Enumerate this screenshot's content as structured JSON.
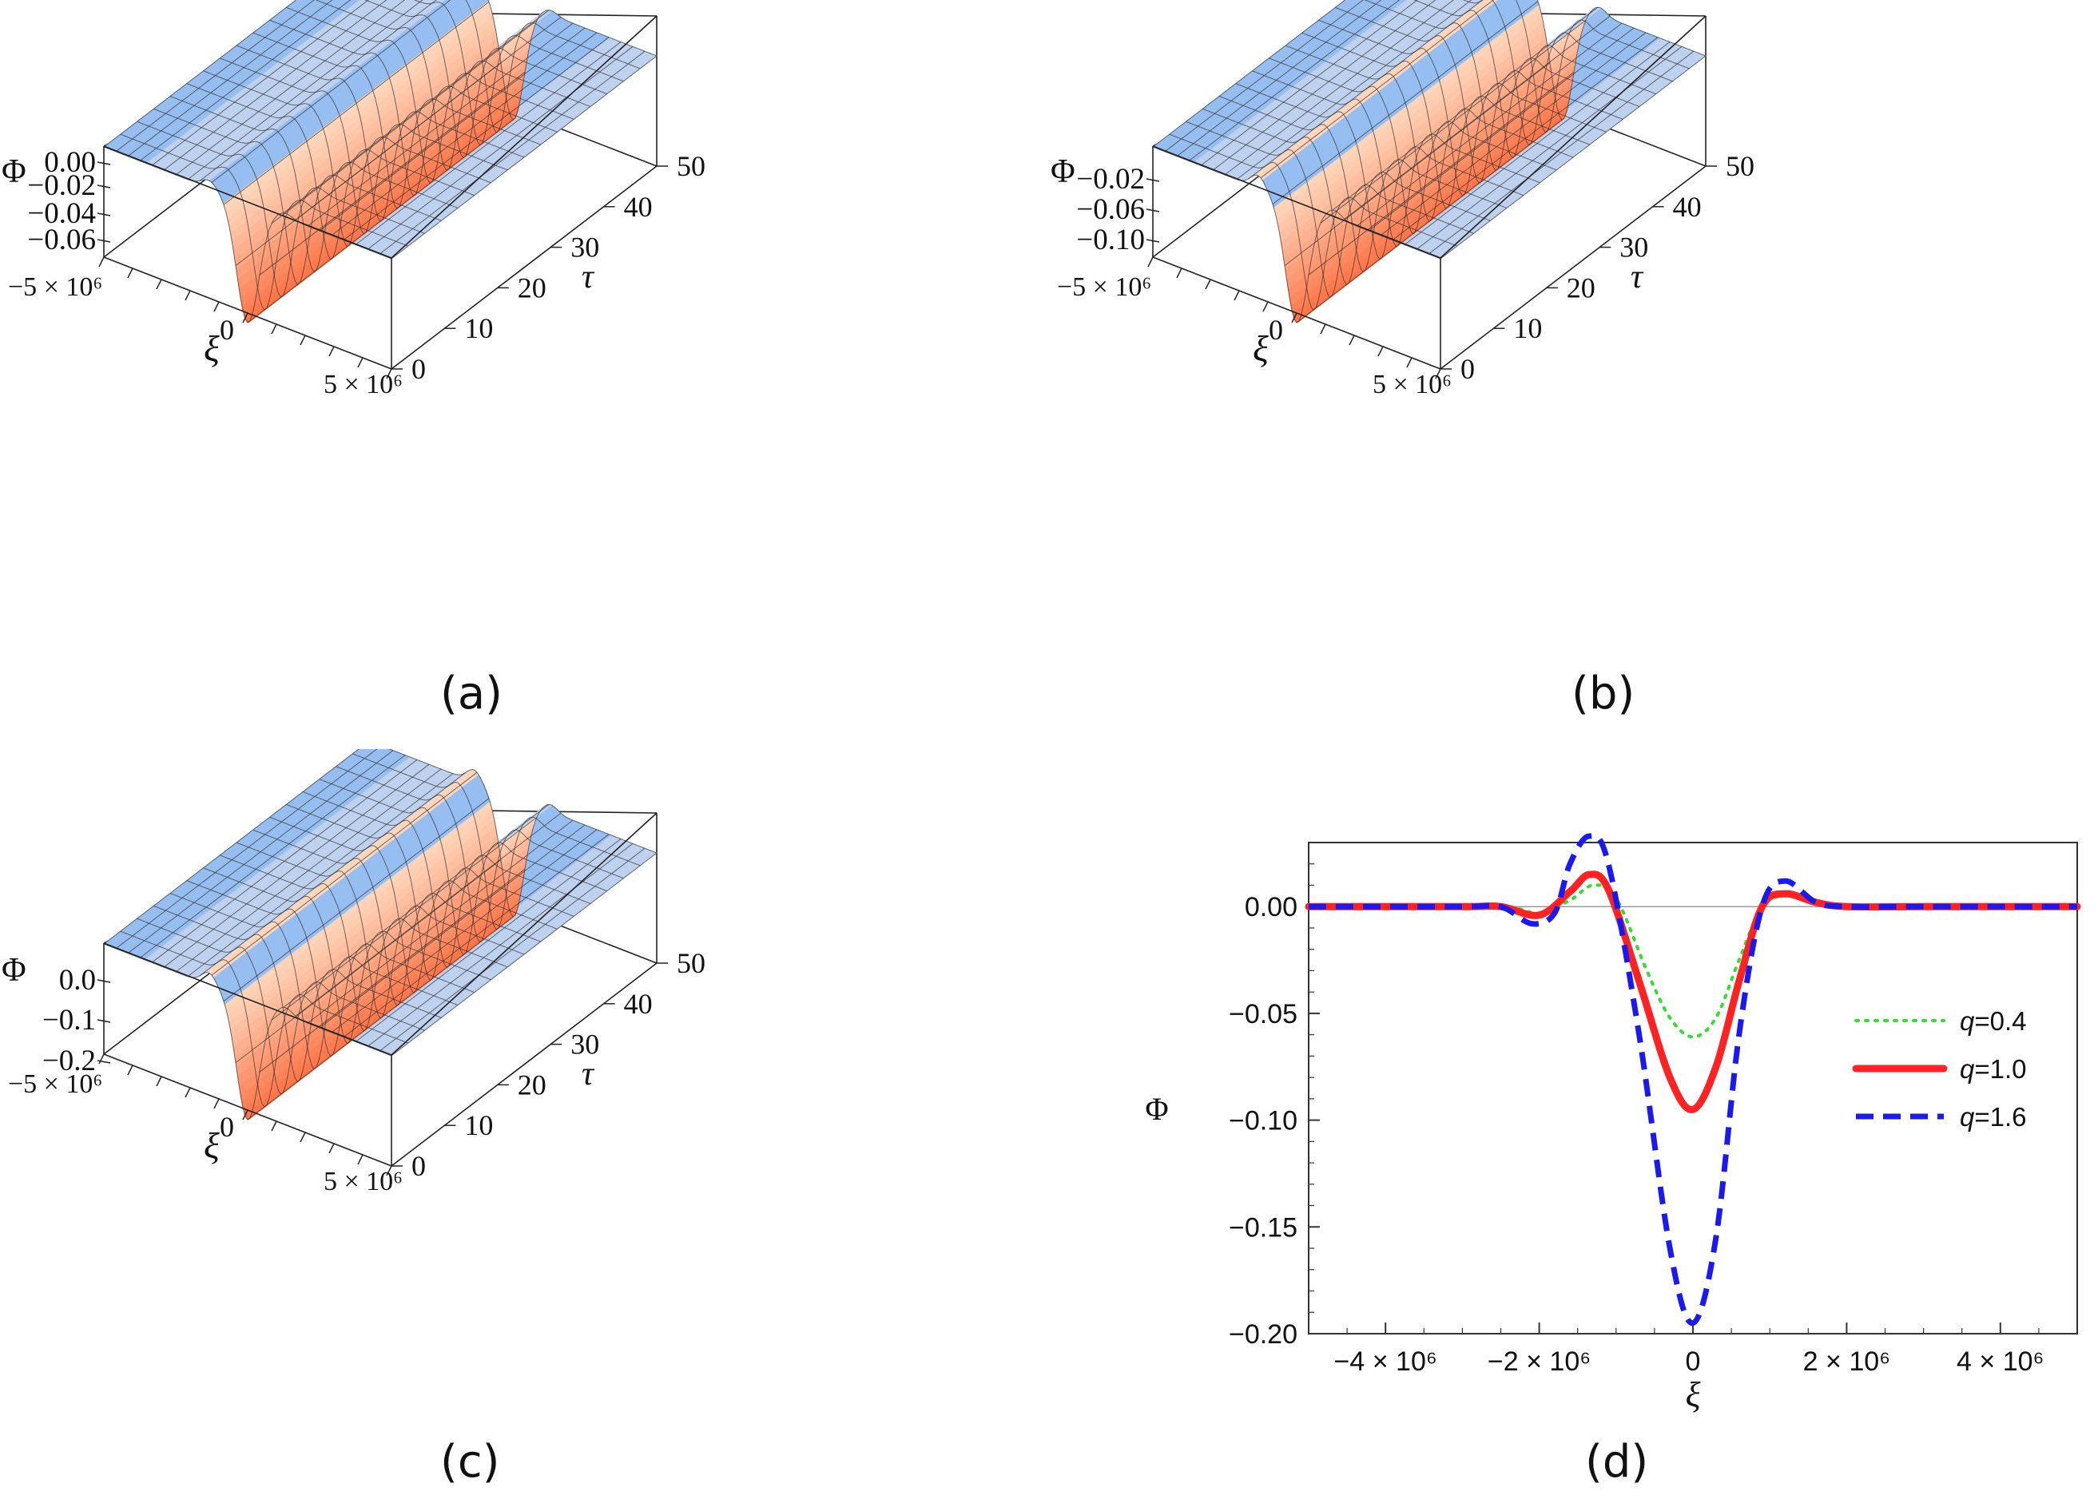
{
  "chart_data": [
    {
      "type": "surface3d",
      "panel_label": "(a)",
      "zlabel": "Φ",
      "xlabel": "ξ",
      "ylabel": "τ",
      "xticks": [
        "−5 × 10⁶",
        "0",
        "5 × 10⁶"
      ],
      "yticks": [
        "0",
        "10",
        "20",
        "30",
        "40",
        "50"
      ],
      "zticks": [
        "0.00",
        "−0.02",
        "−0.04",
        "−0.06"
      ],
      "xlim": [
        -5000000,
        5000000
      ],
      "ylim": [
        0,
        50
      ],
      "zlim": [
        -0.062,
        0.003
      ],
      "min_depth": -0.062,
      "side_bump": 0.004
    },
    {
      "type": "surface3d",
      "panel_label": "(b)",
      "zlabel": "Φ",
      "xlabel": "ξ",
      "ylabel": "τ",
      "xticks": [
        "−5 × 10⁶",
        "0",
        "5 × 10⁶"
      ],
      "yticks": [
        "0",
        "10",
        "20",
        "30",
        "40",
        "50"
      ],
      "zticks": [
        "−0.02",
        "−0.06",
        "−0.10"
      ],
      "xlim": [
        -5000000,
        5000000
      ],
      "ylim": [
        0,
        50
      ],
      "zlim": [
        -0.1,
        0.005
      ],
      "min_depth": -0.095,
      "side_bump": 0.01
    },
    {
      "type": "surface3d",
      "panel_label": "(c)",
      "zlabel": "Φ",
      "xlabel": "ξ",
      "ylabel": "τ",
      "xticks": [
        "−5 × 10⁶",
        "0",
        "5 × 10⁶"
      ],
      "yticks": [
        "0",
        "10",
        "20",
        "30",
        "40",
        "50"
      ],
      "zticks": [
        "0.0",
        "−0.1",
        "−0.2"
      ],
      "xlim": [
        -5000000,
        5000000
      ],
      "ylim": [
        0,
        50
      ],
      "zlim": [
        -0.2,
        0.01
      ],
      "min_depth": -0.195,
      "side_bump": 0.02
    },
    {
      "type": "line",
      "panel_label": "(d)",
      "xlabel": "ξ",
      "ylabel": "Φ",
      "xlim": [
        -5000000,
        5000000
      ],
      "ylim": [
        -0.2,
        0.03
      ],
      "xticks": [
        -4000000,
        -2000000,
        0,
        2000000,
        4000000
      ],
      "xtick_labels": [
        "−4 × 10⁶",
        "−2 × 10⁶",
        "0",
        "2 × 10⁶",
        "4 × 10⁶"
      ],
      "yticks": [
        0.0,
        -0.05,
        -0.1,
        -0.15,
        -0.2
      ],
      "ytick_labels": [
        "0.00",
        "−0.05",
        "−0.10",
        "−0.15",
        "−0.20"
      ],
      "legend_position": "right",
      "series": [
        {
          "name": "q=0.4",
          "style": "dotted",
          "color": "#33dd33",
          "x": [
            -5000000,
            -3000000,
            -2400000,
            -2000000,
            -1600000,
            -1300000,
            -1000000,
            -600000,
            -300000,
            0,
            300000,
            600000,
            900000,
            1200000,
            1500000,
            2000000,
            3000000,
            5000000
          ],
          "y": [
            0.0,
            0.0,
            0.0,
            -0.003,
            0.003,
            0.01,
            0.004,
            -0.03,
            -0.052,
            -0.061,
            -0.052,
            -0.025,
            0.0,
            0.005,
            0.003,
            0.0,
            0.0,
            0.0
          ]
        },
        {
          "name": "q=1.0",
          "style": "solid",
          "color": "#ff2222",
          "x": [
            -5000000,
            -3000000,
            -2500000,
            -2000000,
            -1600000,
            -1350000,
            -1100000,
            -700000,
            -300000,
            0,
            300000,
            600000,
            900000,
            1200000,
            1600000,
            2000000,
            3000000,
            5000000
          ],
          "y": [
            0.0,
            0.0,
            0.0,
            -0.004,
            0.007,
            0.015,
            0.008,
            -0.035,
            -0.08,
            -0.095,
            -0.075,
            -0.035,
            0.0,
            0.006,
            0.002,
            0.0,
            0.0,
            0.0
          ]
        },
        {
          "name": "q=1.6",
          "style": "dashed",
          "color": "#1a1aee",
          "x": [
            -5000000,
            -3000000,
            -2500000,
            -2100000,
            -1800000,
            -1600000,
            -1350000,
            -1100000,
            -700000,
            -300000,
            0,
            300000,
            600000,
            900000,
            1200000,
            1600000,
            2000000,
            3000000,
            5000000
          ],
          "y": [
            0.0,
            0.0,
            0.0,
            -0.008,
            -0.003,
            0.02,
            0.033,
            0.02,
            -0.06,
            -0.16,
            -0.195,
            -0.155,
            -0.06,
            0.0,
            0.012,
            0.002,
            0.0,
            0.0,
            0.0
          ]
        }
      ]
    }
  ]
}
